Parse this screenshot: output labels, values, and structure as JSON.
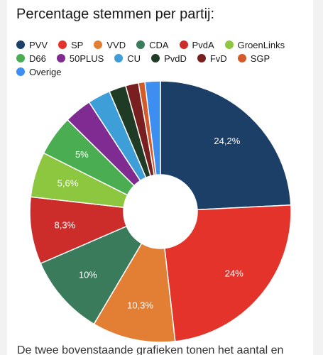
{
  "footer_text": "De twee bovenstaande grafieken tonen het aantal en",
  "chart_data": {
    "type": "pie",
    "donut": true,
    "title": "Percentage stemmen per partij:",
    "legend_position": "top",
    "start_angle_deg": 0,
    "categories": [
      "PVV",
      "SP",
      "VVD",
      "CDA",
      "PvdA",
      "GroenLinks",
      "D66",
      "50PLUS",
      "CU",
      "PvdD",
      "FvD",
      "SGP",
      "Overige"
    ],
    "values": [
      24.2,
      24,
      10.3,
      10,
      8.3,
      5.6,
      5,
      3.4,
      2.8,
      2.1,
      1.6,
      0.8,
      1.9
    ],
    "data_labels": [
      "24,2%",
      "24%",
      "10,3%",
      "10%",
      "8,3%",
      "5,6%",
      "5%",
      "",
      "",
      "",
      "",
      "",
      ""
    ],
    "colors": [
      "#1b3f66",
      "#e3332a",
      "#e37f35",
      "#3a7b5c",
      "#cc2c2a",
      "#8dc63f",
      "#4aad52",
      "#7f2b91",
      "#3e9ed8",
      "#1f3b26",
      "#7a1f1f",
      "#d45a2a",
      "#3d8ef0"
    ]
  }
}
